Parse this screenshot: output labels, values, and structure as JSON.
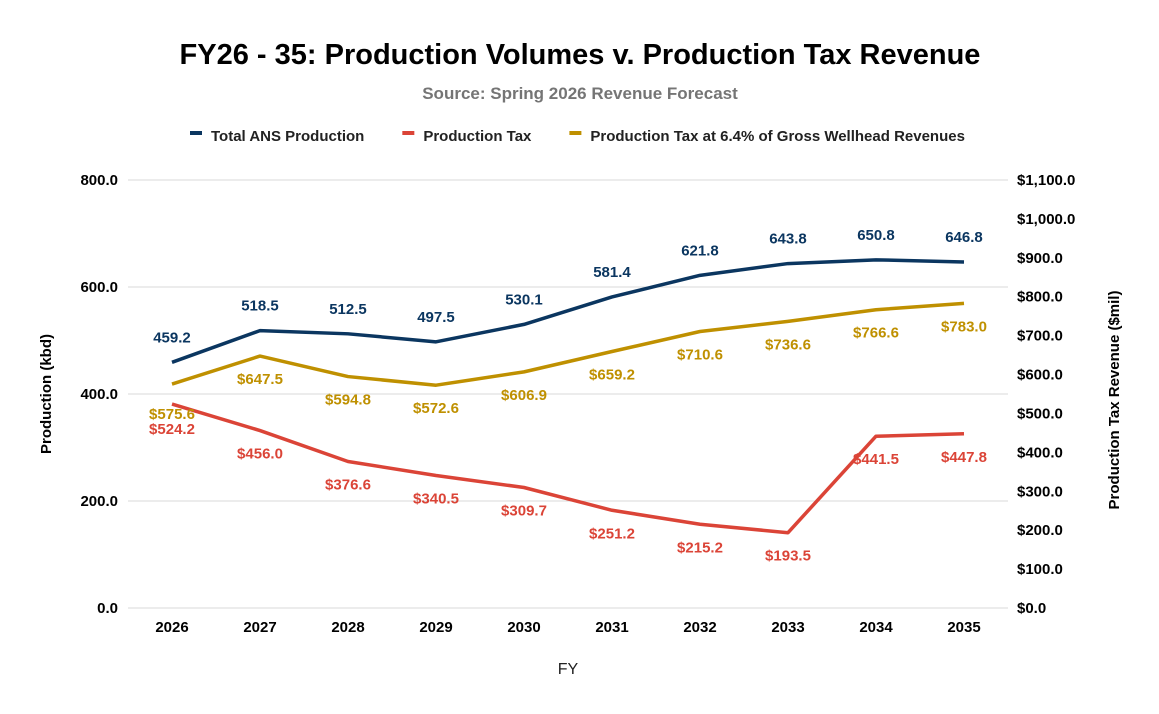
{
  "chart_data": {
    "type": "line",
    "title": "FY26 - 35: Production Volumes v. Production Tax Revenue",
    "subtitle": "Source: Spring 2026 Revenue Forecast",
    "xlabel": "FY",
    "ylabel_left": "Production (kbd)",
    "ylabel_right": "Production Tax Revenue ($mil)",
    "categories": [
      "2026",
      "2027",
      "2028",
      "2029",
      "2030",
      "2031",
      "2032",
      "2033",
      "2034",
      "2035"
    ],
    "y_left": {
      "min": 0,
      "max": 800,
      "ticks": [
        0,
        200,
        400,
        600,
        800
      ],
      "tick_labels": [
        "0.0",
        "200.0",
        "400.0",
        "600.0",
        "800.0"
      ]
    },
    "y_right": {
      "min": 0,
      "max": 1100,
      "ticks": [
        0,
        100,
        200,
        300,
        400,
        500,
        600,
        700,
        800,
        900,
        1000,
        1100
      ],
      "tick_labels": [
        "$0.0",
        "$100.0",
        "$200.0",
        "$300.0",
        "$400.0",
        "$500.0",
        "$600.0",
        "$700.0",
        "$800.0",
        "$900.0",
        "$1,000.0",
        "$1,100.0"
      ]
    },
    "grid": true,
    "legend_position": "top",
    "series": [
      {
        "name": "Total ANS Production",
        "axis": "left",
        "color": "#0b3660",
        "values": [
          459.2,
          518.5,
          512.5,
          497.5,
          530.1,
          581.4,
          621.8,
          643.8,
          650.8,
          646.8
        ],
        "labels": [
          "459.2",
          "518.5",
          "512.5",
          "497.5",
          "530.1",
          "581.4",
          "621.8",
          "643.8",
          "650.8",
          "646.8"
        ]
      },
      {
        "name": "Production Tax",
        "axis": "right",
        "color": "#db4437",
        "values": [
          524.2,
          456.0,
          376.6,
          340.5,
          309.7,
          251.2,
          215.2,
          193.5,
          441.5,
          447.8
        ],
        "labels": [
          "$524.2",
          "$456.0",
          "$376.6",
          "$340.5",
          "$309.7",
          "$251.2",
          "$215.2",
          "$193.5",
          "$441.5",
          "$447.8"
        ]
      },
      {
        "name": "Production Tax at 6.4% of Gross Wellhead Revenues",
        "axis": "right",
        "color": "#bf9000",
        "values": [
          575.6,
          647.5,
          594.8,
          572.6,
          606.9,
          659.2,
          710.6,
          736.6,
          766.6,
          783.0
        ],
        "labels": [
          "$575.6",
          "$647.5",
          "$594.8",
          "$572.6",
          "$606.9",
          "$659.2",
          "$710.6",
          "$736.6",
          "$766.6",
          "$783.0"
        ]
      }
    ]
  }
}
